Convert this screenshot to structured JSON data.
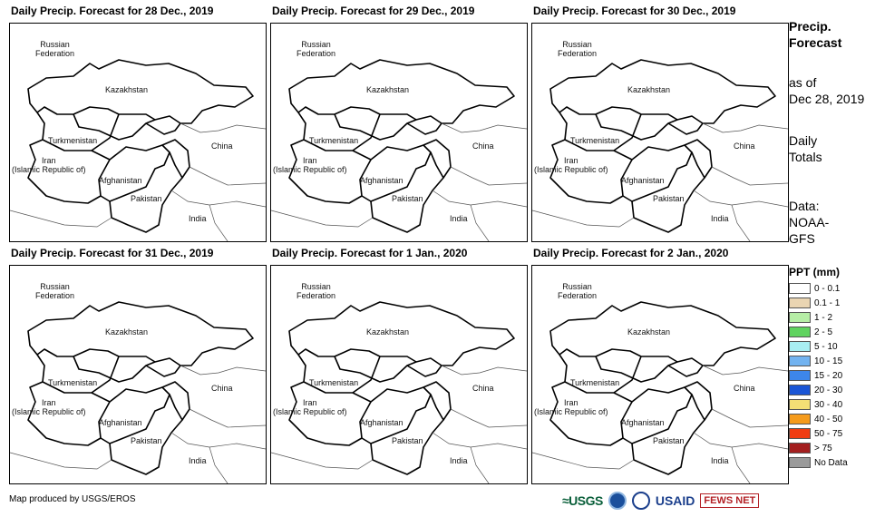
{
  "panels": [
    {
      "title": "Daily Precip. Forecast for 28 Dec., 2019"
    },
    {
      "title": "Daily Precip. Forecast for 29 Dec., 2019"
    },
    {
      "title": "Daily Precip. Forecast for 30 Dec., 2019"
    },
    {
      "title": "Daily Precip. Forecast for 31 Dec., 2019"
    },
    {
      "title": "Daily Precip. Forecast for 1 Jan., 2020"
    },
    {
      "title": "Daily Precip. Forecast for 2 Jan., 2020"
    }
  ],
  "map_labels": {
    "russia": "Russian\nFederation",
    "kazakhstan": "Kazakhstan",
    "turkmenistan": "Turkmenistan",
    "iran": "Iran\n(Islamic Republic of)",
    "afghanistan": "Afghanistan",
    "pakistan": "Pakistan",
    "china": "China",
    "india": "India"
  },
  "side_info": {
    "heading_line1": "Precip.",
    "heading_line2": "Forecast",
    "as_of_line1": "as of",
    "as_of_line2": "Dec 28, 2019",
    "totals_line1": "Daily",
    "totals_line2": "Totals",
    "data_line1": "Data:",
    "data_line2": "NOAA-",
    "data_line3": "GFS"
  },
  "legend": {
    "title": "PPT (mm)",
    "items": [
      {
        "label": "0 - 0.1",
        "color": "#ffffff"
      },
      {
        "label": "0.1 - 1",
        "color": "#ead5b2"
      },
      {
        "label": "1 - 2",
        "color": "#b6eea6"
      },
      {
        "label": "2 - 5",
        "color": "#5fd35f"
      },
      {
        "label": "5 - 10",
        "color": "#a8eef3"
      },
      {
        "label": "10 - 15",
        "color": "#72b3f0"
      },
      {
        "label": "15 - 20",
        "color": "#3d86ea"
      },
      {
        "label": "20 - 30",
        "color": "#1a55d6"
      },
      {
        "label": "30 - 40",
        "color": "#f4df75"
      },
      {
        "label": "40 - 50",
        "color": "#f59b1c"
      },
      {
        "label": "50 - 75",
        "color": "#f03c12"
      },
      {
        "label": "> 75",
        "color": "#a31e1e"
      },
      {
        "label": "No Data",
        "color": "#9a9a9a"
      }
    ]
  },
  "credit": "Map produced by USGS/EROS",
  "logos": {
    "usgs": "≈USGS",
    "usaid": "USAID",
    "fews": "FEWS NET"
  }
}
